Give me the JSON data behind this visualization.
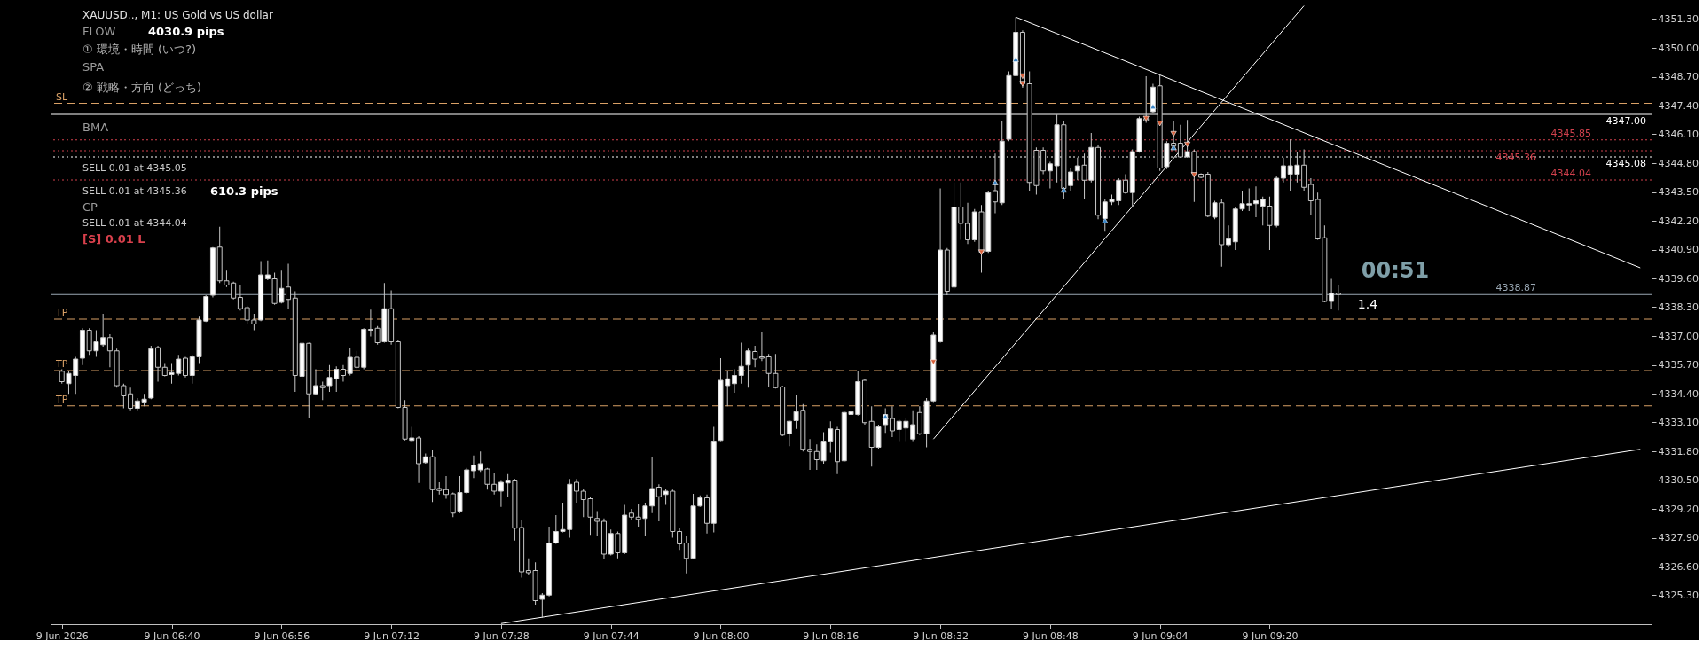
{
  "chart_data": {
    "type": "candlestick",
    "title": "XAUUSD.., M1:  US Gold vs US dollar",
    "x": [
      "2026-06-09T06:24",
      "2026-06-09T06:25",
      "2026-06-09T06:26",
      "2026-06-09T06:27",
      "2026-06-09T06:28",
      "2026-06-09T06:29",
      "2026-06-09T06:30",
      "2026-06-09T06:31",
      "2026-06-09T06:32",
      "2026-06-09T06:33",
      "2026-06-09T06:34",
      "2026-06-09T06:35",
      "2026-06-09T06:36",
      "2026-06-09T06:37",
      "2026-06-09T06:38",
      "2026-06-09T06:39",
      "2026-06-09T06:40",
      "2026-06-09T06:41",
      "2026-06-09T06:42",
      "2026-06-09T06:43",
      "2026-06-09T06:44",
      "2026-06-09T06:45",
      "2026-06-09T06:46",
      "2026-06-09T06:47",
      "2026-06-09T06:48",
      "2026-06-09T06:49",
      "2026-06-09T06:50",
      "2026-06-09T06:51",
      "2026-06-09T06:52",
      "2026-06-09T06:53",
      "2026-06-09T06:54",
      "2026-06-09T06:55",
      "2026-06-09T06:56",
      "2026-06-09T06:57",
      "2026-06-09T06:58",
      "2026-06-09T06:59",
      "2026-06-09T07:00",
      "2026-06-09T07:01",
      "2026-06-09T07:02",
      "2026-06-09T07:03",
      "2026-06-09T07:04",
      "2026-06-09T07:05",
      "2026-06-09T07:06",
      "2026-06-09T07:07",
      "2026-06-09T07:08",
      "2026-06-09T07:09",
      "2026-06-09T07:10",
      "2026-06-09T07:11",
      "2026-06-09T07:12",
      "2026-06-09T07:13",
      "2026-06-09T07:14",
      "2026-06-09T07:15",
      "2026-06-09T07:16",
      "2026-06-09T07:17",
      "2026-06-09T07:18",
      "2026-06-09T07:19",
      "2026-06-09T07:20",
      "2026-06-09T07:21",
      "2026-06-09T07:22",
      "2026-06-09T07:23",
      "2026-06-09T07:24",
      "2026-06-09T07:25",
      "2026-06-09T07:26",
      "2026-06-09T07:27",
      "2026-06-09T07:28",
      "2026-06-09T07:29",
      "2026-06-09T07:30",
      "2026-06-09T07:31",
      "2026-06-09T07:32",
      "2026-06-09T07:33",
      "2026-06-09T07:34",
      "2026-06-09T07:35",
      "2026-06-09T07:36",
      "2026-06-09T07:37",
      "2026-06-09T07:38",
      "2026-06-09T07:39",
      "2026-06-09T07:40",
      "2026-06-09T07:41",
      "2026-06-09T07:42",
      "2026-06-09T07:43",
      "2026-06-09T07:44",
      "2026-06-09T07:45",
      "2026-06-09T07:46",
      "2026-06-09T07:47",
      "2026-06-09T07:48",
      "2026-06-09T07:49",
      "2026-06-09T07:50",
      "2026-06-09T07:51",
      "2026-06-09T07:52",
      "2026-06-09T07:53",
      "2026-06-09T07:54",
      "2026-06-09T07:55",
      "2026-06-09T07:56",
      "2026-06-09T07:57",
      "2026-06-09T07:58",
      "2026-06-09T07:59",
      "2026-06-09T08:00",
      "2026-06-09T08:01",
      "2026-06-09T08:02",
      "2026-06-09T08:03",
      "2026-06-09T08:04",
      "2026-06-09T08:05",
      "2026-06-09T08:06",
      "2026-06-09T08:07",
      "2026-06-09T08:08",
      "2026-06-09T08:09",
      "2026-06-09T08:10",
      "2026-06-09T08:11",
      "2026-06-09T08:12",
      "2026-06-09T08:13",
      "2026-06-09T08:14",
      "2026-06-09T08:15",
      "2026-06-09T08:16",
      "2026-06-09T08:17",
      "2026-06-09T08:18",
      "2026-06-09T08:19",
      "2026-06-09T08:20",
      "2026-06-09T08:21",
      "2026-06-09T08:22",
      "2026-06-09T08:23",
      "2026-06-09T08:24",
      "2026-06-09T08:25",
      "2026-06-09T08:26",
      "2026-06-09T08:27",
      "2026-06-09T08:28",
      "2026-06-09T08:29",
      "2026-06-09T08:30",
      "2026-06-09T08:31",
      "2026-06-09T08:32",
      "2026-06-09T08:33",
      "2026-06-09T08:34",
      "2026-06-09T08:35",
      "2026-06-09T08:36",
      "2026-06-09T08:37",
      "2026-06-09T08:38",
      "2026-06-09T08:39",
      "2026-06-09T08:40",
      "2026-06-09T08:41",
      "2026-06-09T08:42",
      "2026-06-09T08:43",
      "2026-06-09T08:44",
      "2026-06-09T08:45",
      "2026-06-09T08:46",
      "2026-06-09T08:47",
      "2026-06-09T08:48",
      "2026-06-09T08:49",
      "2026-06-09T08:50",
      "2026-06-09T08:51",
      "2026-06-09T08:52",
      "2026-06-09T08:53",
      "2026-06-09T08:54",
      "2026-06-09T08:55",
      "2026-06-09T08:56",
      "2026-06-09T08:57",
      "2026-06-09T08:58",
      "2026-06-09T08:59",
      "2026-06-09T09:00",
      "2026-06-09T09:01",
      "2026-06-09T09:02",
      "2026-06-09T09:03",
      "2026-06-09T09:04",
      "2026-06-09T09:05",
      "2026-06-09T09:06",
      "2026-06-09T09:07",
      "2026-06-09T09:08",
      "2026-06-09T09:09",
      "2026-06-09T09:10",
      "2026-06-09T09:11",
      "2026-06-09T09:12",
      "2026-06-09T09:13",
      "2026-06-09T09:14",
      "2026-06-09T09:15",
      "2026-06-09T09:16",
      "2026-06-09T09:17",
      "2026-06-09T09:18",
      "2026-06-09T09:19",
      "2026-06-09T09:20",
      "2026-06-09T09:21",
      "2026-06-09T09:22",
      "2026-06-09T09:23",
      "2026-06-09T09:24",
      "2026-06-09T09:25",
      "2026-06-09T09:26",
      "2026-06-09T09:27",
      "2026-06-09T09:28",
      "2026-06-09T09:29",
      "2026-06-09T09:30"
    ],
    "ohlc": [
      [
        4335.41,
        4335.5,
        4334.85,
        4334.94
      ],
      [
        4334.85,
        4335.41,
        4334.39,
        4335.31
      ],
      [
        4335.22,
        4336.06,
        4334.39,
        4335.96
      ],
      [
        4336.0,
        4337.35,
        4335.69,
        4337.26
      ],
      [
        4337.26,
        4337.35,
        4336.15,
        4336.33
      ],
      [
        4336.33,
        4337.26,
        4336.06,
        4336.74
      ],
      [
        4336.61,
        4338.0,
        4336.52,
        4336.93
      ],
      [
        4336.93,
        4337.08,
        4335.59,
        4336.33
      ],
      [
        4336.33,
        4336.43,
        4334.67,
        4334.76
      ],
      [
        4334.76,
        4334.85,
        4333.74,
        4334.3
      ],
      [
        4334.39,
        4334.67,
        4333.65,
        4333.74
      ],
      [
        4333.74,
        4334.2,
        4333.65,
        4334.07
      ],
      [
        4334.02,
        4334.39,
        4333.83,
        4334.15
      ],
      [
        4334.2,
        4336.56,
        4334.15,
        4336.43
      ],
      [
        4336.48,
        4336.56,
        4334.94,
        4335.59
      ],
      [
        4335.59,
        4335.78,
        4335.18,
        4335.22
      ],
      [
        4335.26,
        4335.78,
        4334.85,
        4335.35
      ],
      [
        4335.31,
        4336.15,
        4335.22,
        4335.96
      ],
      [
        4336.0,
        4336.06,
        4335.13,
        4335.22
      ],
      [
        4335.22,
        4336.15,
        4334.85,
        4336.06
      ],
      [
        4336.06,
        4337.91,
        4335.78,
        4337.72
      ],
      [
        4337.67,
        4338.84,
        4337.63,
        4338.78
      ],
      [
        4338.84,
        4341.01,
        4338.74,
        4340.97
      ],
      [
        4341.01,
        4341.93,
        4339.39,
        4339.49
      ],
      [
        4339.49,
        4339.95,
        4339.21,
        4339.3
      ],
      [
        4339.39,
        4339.45,
        4338.65,
        4338.71
      ],
      [
        4338.74,
        4339.3,
        4338.15,
        4338.23
      ],
      [
        4338.28,
        4338.37,
        4337.54,
        4337.72
      ],
      [
        4337.72,
        4338.0,
        4337.26,
        4337.54
      ],
      [
        4337.72,
        4340.38,
        4337.67,
        4339.76
      ],
      [
        4339.58,
        4340.41,
        4339.52,
        4339.76
      ],
      [
        4339.58,
        4339.86,
        4338.41,
        4338.47
      ],
      [
        4338.52,
        4339.95,
        4338.47,
        4339.15
      ],
      [
        4339.21,
        4340.26,
        4338.23,
        4338.65
      ],
      [
        4338.71,
        4339.02,
        4334.48,
        4335.22
      ],
      [
        4335.18,
        4336.7,
        4335.04,
        4336.67
      ],
      [
        4336.67,
        4336.7,
        4333.28,
        4334.39
      ],
      [
        4334.39,
        4335.5,
        4334.33,
        4334.76
      ],
      [
        4334.76,
        4334.94,
        4334.11,
        4334.67
      ],
      [
        4334.76,
        4335.69,
        4334.48,
        4335.13
      ],
      [
        4335.07,
        4335.63,
        4334.48,
        4335.5
      ],
      [
        4335.5,
        4335.69,
        4334.94,
        4335.22
      ],
      [
        4335.31,
        4336.48,
        4335.22,
        4336.04
      ],
      [
        4336.04,
        4336.33,
        4335.5,
        4335.59
      ],
      [
        4335.59,
        4337.35,
        4335.5,
        4337.3
      ],
      [
        4337.3,
        4338.19,
        4336.98,
        4337.26
      ],
      [
        4337.35,
        4337.45,
        4336.61,
        4336.7
      ],
      [
        4336.74,
        4339.39,
        4336.7,
        4338.23
      ],
      [
        4338.23,
        4339.06,
        4336.61,
        4336.74
      ],
      [
        4336.74,
        4336.8,
        4333.74,
        4333.78
      ],
      [
        4333.78,
        4334.11,
        4332.29,
        4332.35
      ],
      [
        4332.29,
        4332.9,
        4332.22,
        4332.4
      ],
      [
        4332.4,
        4332.48,
        4330.37,
        4331.24
      ],
      [
        4331.29,
        4331.7,
        4331.24,
        4331.55
      ],
      [
        4331.55,
        4331.85,
        4329.51,
        4330.07
      ],
      [
        4330.12,
        4330.4,
        4329.85,
        4330.03
      ],
      [
        4330.07,
        4330.68,
        4329.66,
        4329.85
      ],
      [
        4329.88,
        4329.94,
        4328.83,
        4329.01
      ],
      [
        4329.1,
        4330.68,
        4329.01,
        4329.94
      ],
      [
        4329.94,
        4331.05,
        4329.88,
        4330.96
      ],
      [
        4330.92,
        4331.61,
        4330.59,
        4331.18
      ],
      [
        4330.96,
        4331.79,
        4330.87,
        4331.24
      ],
      [
        4331.0,
        4331.05,
        4330.07,
        4330.31
      ],
      [
        4330.31,
        4330.81,
        4329.85,
        4330.0
      ],
      [
        4330.0,
        4330.5,
        4329.29,
        4330.4
      ],
      [
        4330.37,
        4330.77,
        4329.75,
        4330.5
      ],
      [
        4330.5,
        4330.55,
        4327.77,
        4328.33
      ],
      [
        4328.36,
        4328.7,
        4326.1,
        4326.36
      ],
      [
        4326.42,
        4326.97,
        4326.23,
        4326.32
      ],
      [
        4326.42,
        4326.79,
        4324.88,
        4325.06
      ],
      [
        4325.12,
        4325.4,
        4324.29,
        4325.31
      ],
      [
        4325.31,
        4328.4,
        4325.25,
        4327.66
      ],
      [
        4327.66,
        4328.92,
        4327.62,
        4328.18
      ],
      [
        4328.18,
        4329.48,
        4328.14,
        4328.27
      ],
      [
        4328.27,
        4330.55,
        4327.9,
        4330.31
      ],
      [
        4330.4,
        4330.55,
        4329.48,
        4330.0
      ],
      [
        4330.0,
        4330.12,
        4328.83,
        4329.62
      ],
      [
        4329.66,
        4329.75,
        4328.03,
        4328.83
      ],
      [
        4328.77,
        4329.1,
        4327.96,
        4328.64
      ],
      [
        4328.64,
        4328.77,
        4326.92,
        4327.16
      ],
      [
        4327.16,
        4328.27,
        4327.1,
        4328.09
      ],
      [
        4328.09,
        4328.18,
        4326.97,
        4327.22
      ],
      [
        4327.22,
        4329.38,
        4327.16,
        4328.92
      ],
      [
        4329.01,
        4329.2,
        4328.7,
        4328.83
      ],
      [
        4328.83,
        4329.44,
        4328.4,
        4328.73
      ],
      [
        4328.77,
        4329.48,
        4327.99,
        4329.33
      ],
      [
        4329.33,
        4331.55,
        4329.01,
        4330.12
      ],
      [
        4330.18,
        4330.31,
        4328.64,
        4329.75
      ],
      [
        4329.85,
        4330.12,
        4329.38,
        4330.0
      ],
      [
        4330.0,
        4330.07,
        4327.9,
        4328.18
      ],
      [
        4328.18,
        4328.36,
        4327.35,
        4327.62
      ],
      [
        4327.66,
        4327.99,
        4326.29,
        4326.97
      ],
      [
        4326.97,
        4329.88,
        4326.92,
        4329.33
      ],
      [
        4329.33,
        4329.81,
        4329.29,
        4329.7
      ],
      [
        4329.7,
        4329.85,
        4328.09,
        4328.55
      ],
      [
        4328.55,
        4332.9,
        4328.14,
        4332.26
      ],
      [
        4332.29,
        4336.0,
        4332.26,
        4335.0
      ],
      [
        4334.76,
        4335.41,
        4333.83,
        4335.07
      ],
      [
        4334.85,
        4335.5,
        4334.44,
        4335.22
      ],
      [
        4335.22,
        4336.7,
        4334.85,
        4335.63
      ],
      [
        4335.69,
        4336.43,
        4334.67,
        4336.33
      ],
      [
        4336.3,
        4336.56,
        4335.59,
        4335.96
      ],
      [
        4336.06,
        4337.17,
        4335.87,
        4336.0
      ],
      [
        4336.06,
        4336.19,
        4334.7,
        4335.31
      ],
      [
        4335.31,
        4336.19,
        4334.63,
        4334.67
      ],
      [
        4334.7,
        4334.76,
        4332.48,
        4332.53
      ],
      [
        4332.59,
        4333.18,
        4332.03,
        4333.15
      ],
      [
        4333.18,
        4334.33,
        4332.81,
        4333.59
      ],
      [
        4333.65,
        4333.93,
        4331.79,
        4331.89
      ],
      [
        4331.89,
        4332.35,
        4330.96,
        4331.79
      ],
      [
        4331.79,
        4332.11,
        4330.96,
        4331.42
      ],
      [
        4331.37,
        4332.66,
        4331.24,
        4332.26
      ],
      [
        4332.26,
        4333.15,
        4331.74,
        4332.81
      ],
      [
        4332.78,
        4332.9,
        4330.77,
        4331.33
      ],
      [
        4331.37,
        4333.59,
        4331.33,
        4333.55
      ],
      [
        4333.46,
        4334.67,
        4333.41,
        4333.59
      ],
      [
        4333.46,
        4335.44,
        4333.41,
        4334.94
      ],
      [
        4335.0,
        4335.07,
        4333.0,
        4333.09
      ],
      [
        4333.15,
        4333.83,
        4331.11,
        4331.98
      ],
      [
        4331.98,
        4333.0,
        4331.92,
        4332.9
      ],
      [
        4333.0,
        4333.74,
        4332.63,
        4333.46
      ],
      [
        4333.28,
        4333.83,
        4332.44,
        4332.72
      ],
      [
        4332.78,
        4333.22,
        4332.26,
        4333.15
      ],
      [
        4332.85,
        4333.28,
        4332.26,
        4333.15
      ],
      [
        4332.35,
        4333.65,
        4332.26,
        4333.0
      ],
      [
        4333.55,
        4333.83,
        4332.53,
        4332.59
      ],
      [
        4332.59,
        4334.2,
        4331.98,
        4334.07
      ],
      [
        4334.07,
        4337.17,
        4334.02,
        4337.04
      ],
      [
        4336.74,
        4343.66,
        4336.7,
        4340.88
      ],
      [
        4340.88,
        4340.97,
        4338.84,
        4339.02
      ],
      [
        4339.21,
        4343.93,
        4339.11,
        4342.82
      ],
      [
        4342.82,
        4343.93,
        4341.34,
        4342.08
      ],
      [
        4342.08,
        4343.01,
        4341.15,
        4341.34
      ],
      [
        4341.34,
        4342.73,
        4341.25,
        4342.6
      ],
      [
        4342.6,
        4342.91,
        4339.86,
        4340.78
      ],
      [
        4340.82,
        4343.56,
        4340.75,
        4343.47
      ],
      [
        4343.56,
        4345.23,
        4342.54,
        4343.05
      ],
      [
        4343.01,
        4346.71,
        4342.91,
        4345.79
      ],
      [
        4345.88,
        4348.94,
        4345.79,
        4348.75
      ],
      [
        4348.75,
        4351.39,
        4348.72,
        4350.7
      ],
      [
        4350.7,
        4350.79,
        4348.2,
        4348.38
      ],
      [
        4348.38,
        4348.94,
        4343.56,
        4343.93
      ],
      [
        4345.38,
        4345.51,
        4343.38,
        4343.79
      ],
      [
        4345.38,
        4345.51,
        4344.3,
        4344.45
      ],
      [
        4344.45,
        4344.86,
        4343.66,
        4344.77
      ],
      [
        4344.68,
        4346.99,
        4343.93,
        4346.53
      ],
      [
        4346.53,
        4346.71,
        4343.16,
        4343.66
      ],
      [
        4343.79,
        4344.58,
        4343.56,
        4344.4
      ],
      [
        4344.45,
        4345.05,
        4344.03,
        4344.68
      ],
      [
        4344.71,
        4345.23,
        4343.19,
        4344.03
      ],
      [
        4344.03,
        4346.16,
        4343.93,
        4345.51
      ],
      [
        4345.51,
        4345.6,
        4342.27,
        4342.45
      ],
      [
        4342.3,
        4343.19,
        4341.71,
        4343.05
      ],
      [
        4343.05,
        4343.38,
        4342.91,
        4343.16
      ],
      [
        4343.1,
        4344.12,
        4342.91,
        4344.03
      ],
      [
        4344.03,
        4344.3,
        4343.42,
        4343.47
      ],
      [
        4343.47,
        4345.42,
        4342.82,
        4345.32
      ],
      [
        4345.32,
        4346.9,
        4345.27,
        4346.81
      ],
      [
        4346.81,
        4348.72,
        4346.62,
        4346.71
      ],
      [
        4347.12,
        4348.38,
        4347.05,
        4348.23
      ],
      [
        4348.29,
        4348.79,
        4344.45,
        4344.58
      ],
      [
        4344.64,
        4345.79,
        4344.53,
        4345.7
      ],
      [
        4345.7,
        4346.71,
        4345.42,
        4345.57
      ],
      [
        4345.7,
        4346.53,
        4345.05,
        4345.08
      ],
      [
        4345.08,
        4346.75,
        4345.05,
        4345.32
      ],
      [
        4345.32,
        4345.42,
        4343.05,
        4344.34
      ],
      [
        4344.3,
        4344.34,
        4344.12,
        4344.16
      ],
      [
        4344.3,
        4344.4,
        4342.36,
        4342.41
      ],
      [
        4342.36,
        4343.1,
        4342.27,
        4343.01
      ],
      [
        4343.01,
        4343.19,
        4340.13,
        4341.12
      ],
      [
        4341.12,
        4341.99,
        4341.01,
        4341.38
      ],
      [
        4341.25,
        4342.82,
        4340.88,
        4342.73
      ],
      [
        4342.73,
        4343.56,
        4342.64,
        4342.97
      ],
      [
        4342.91,
        4343.66,
        4342.64,
        4342.97
      ],
      [
        4342.97,
        4343.75,
        4342.36,
        4343.1
      ],
      [
        4342.86,
        4343.29,
        4341.99,
        4343.16
      ],
      [
        4342.86,
        4343.29,
        4340.88,
        4341.99
      ],
      [
        4341.99,
        4344.21,
        4341.9,
        4344.12
      ],
      [
        4344.12,
        4345.05,
        4343.93,
        4344.68
      ],
      [
        4344.3,
        4345.88,
        4343.56,
        4344.68
      ],
      [
        4344.3,
        4345.32,
        4343.93,
        4344.71
      ],
      [
        4344.71,
        4345.42,
        4343.56,
        4343.71
      ],
      [
        4343.84,
        4344.12,
        4342.45,
        4343.1
      ],
      [
        4343.16,
        4343.47,
        4341.34,
        4341.38
      ],
      [
        4341.43,
        4341.99,
        4338.52,
        4338.56
      ],
      [
        4338.56,
        4339.58,
        4338.23,
        4338.93
      ],
      [
        4338.93,
        4339.3,
        4338.15,
        4338.87
      ]
    ],
    "series": [
      {
        "type": "line",
        "color": "#ffffff",
        "line_style": "solid",
        "x": [
          "2026-06-09T08:43",
          "2026-06-09T10:14"
        ],
        "values": [
          4351.39,
          4340.08
        ]
      },
      {
        "type": "line",
        "color": "#ffffff",
        "line_style": "solid",
        "x": [
          "2026-06-09T08:31",
          "2026-06-09T09:25"
        ],
        "values": [
          4332.35,
          4351.9
        ]
      },
      {
        "type": "line",
        "color": "#ffffff",
        "line_style": "solid",
        "x": [
          "2026-06-09T07:28",
          "2026-06-09T10:14"
        ],
        "values": [
          4324.03,
          4331.89
        ]
      },
      {
        "type": "scatter",
        "color": "#3a86c8",
        "marker": "triangle",
        "x": [
          "2026-06-09T08:24",
          "2026-06-09T08:40",
          "2026-06-09T08:43",
          "2026-06-09T08:50",
          "2026-06-09T08:56",
          "2026-06-09T09:03",
          "2026-06-09T09:06"
        ],
        "values": [
          4333.37,
          4343.93,
          4349.49,
          4343.6,
          4342.21,
          4347.36,
          4345.51
        ]
      },
      {
        "type": "scatter",
        "color": "#d8603a",
        "marker": "triangle",
        "x": [
          "2026-06-09T08:31",
          "2026-06-09T08:38",
          "2026-06-09T08:44",
          "2026-06-09T08:44",
          "2026-06-09T09:02",
          "2026-06-09T09:04",
          "2026-06-09T09:06",
          "2026-06-09T09:08",
          "2026-06-09T09:09"
        ],
        "values": [
          4335.82,
          4340.78,
          4348.72,
          4348.38,
          4346.81,
          4346.59,
          4346.12,
          4345.64,
          4344.27
        ]
      }
    ],
    "xlim": [
      "2026-06-09T06:23",
      "2026-06-09T10:15"
    ],
    "xticks": [
      {
        "value": "2026-06-09T06:24",
        "label": "9 Jun 2026"
      },
      {
        "value": "2026-06-09T06:40",
        "label": "9 Jun 06:40"
      },
      {
        "value": "2026-06-09T06:56",
        "label": "9 Jun 06:56"
      },
      {
        "value": "2026-06-09T07:12",
        "label": "9 Jun 07:12"
      },
      {
        "value": "2026-06-09T07:28",
        "label": "9 Jun 07:28"
      },
      {
        "value": "2026-06-09T07:44",
        "label": "9 Jun 07:44"
      },
      {
        "value": "2026-06-09T08:00",
        "label": "9 Jun 08:00"
      },
      {
        "value": "2026-06-09T08:16",
        "label": "9 Jun 08:16"
      },
      {
        "value": "2026-06-09T08:32",
        "label": "9 Jun 08:32"
      },
      {
        "value": "2026-06-09T08:48",
        "label": "9 Jun 08:48"
      },
      {
        "value": "2026-06-09T09:04",
        "label": "9 Jun 09:04"
      },
      {
        "value": "2026-06-09T09:20",
        "label": "9 Jun 09:20"
      }
    ],
    "ylim": [
      4324.0,
      4352.0
    ],
    "yticks": [
      {
        "value": 4325.3,
        "label": "4325.30"
      },
      {
        "value": 4326.6,
        "label": "4326.60"
      },
      {
        "value": 4327.9,
        "label": "4327.90"
      },
      {
        "value": 4329.2,
        "label": "4329.20"
      },
      {
        "value": 4330.5,
        "label": "4330.50"
      },
      {
        "value": 4331.8,
        "label": "4331.80"
      },
      {
        "value": 4333.1,
        "label": "4333.10"
      },
      {
        "value": 4334.4,
        "label": "4334.40"
      },
      {
        "value": 4335.7,
        "label": "4335.70"
      },
      {
        "value": 4337.0,
        "label": "4337.00"
      },
      {
        "value": 4338.3,
        "label": "4338.30"
      },
      {
        "value": 4339.6,
        "label": "4339.60"
      },
      {
        "value": 4340.9,
        "label": "4340.90"
      },
      {
        "value": 4342.2,
        "label": "4342.20"
      },
      {
        "value": 4343.5,
        "label": "4343.50"
      },
      {
        "value": 4344.8,
        "label": "4344.80"
      },
      {
        "value": 4346.1,
        "label": "4346.10"
      },
      {
        "value": 4347.4,
        "label": "4347.40"
      },
      {
        "value": 4348.7,
        "label": "4348.70"
      },
      {
        "value": 4350.0,
        "label": "4350.00"
      },
      {
        "value": 4351.3,
        "label": "4351.30"
      }
    ],
    "ref_lines": [
      {
        "axis": "y",
        "value": 4347.5,
        "label": "SL",
        "color": "#d9a066",
        "line_style": "dashed"
      },
      {
        "axis": "y",
        "value": 4347.0,
        "label": "4347.00",
        "color": "#ffffff",
        "line_style": "solid"
      },
      {
        "axis": "y",
        "value": 4345.85,
        "label": "4345.85",
        "color": "#d0404c",
        "line_style": "dotted"
      },
      {
        "axis": "y",
        "value": 4345.36,
        "label": "4345.36",
        "color": "#d0404c",
        "line_style": "dotted"
      },
      {
        "axis": "y",
        "value": 4345.08,
        "label": "4345.08",
        "color": "#ffffff",
        "line_style": "dotted"
      },
      {
        "axis": "y",
        "value": 4344.04,
        "label": "4344.04",
        "color": "#d0404c",
        "line_style": "dotted"
      },
      {
        "axis": "y",
        "value": 4338.87,
        "label": "4338.87",
        "color": "#9aa8b4",
        "line_style": "solid"
      },
      {
        "axis": "y",
        "value": 4337.76,
        "label": "TP",
        "color": "#d9a066",
        "line_style": "dashed"
      },
      {
        "axis": "y",
        "value": 4335.44,
        "label": "TP",
        "color": "#d9a066",
        "line_style": "dashed"
      },
      {
        "axis": "y",
        "value": 4333.85,
        "label": "TP",
        "color": "#d9a066",
        "line_style": "dashed"
      }
    ],
    "annotations": [
      "FLOW",
      "4030.9 pips",
      "① 環境・時間 (いつ?)",
      "SPA",
      "② 戦略・方向 (どっち)",
      "BMA",
      "SELL 0.01 at 4345.05",
      "SELL 0.01 at 4345.36",
      "610.3 pips",
      "CP",
      "SELL 0.01 at 4344.04",
      "[S] 0.01 L",
      "00:51",
      "1.4"
    ]
  }
}
